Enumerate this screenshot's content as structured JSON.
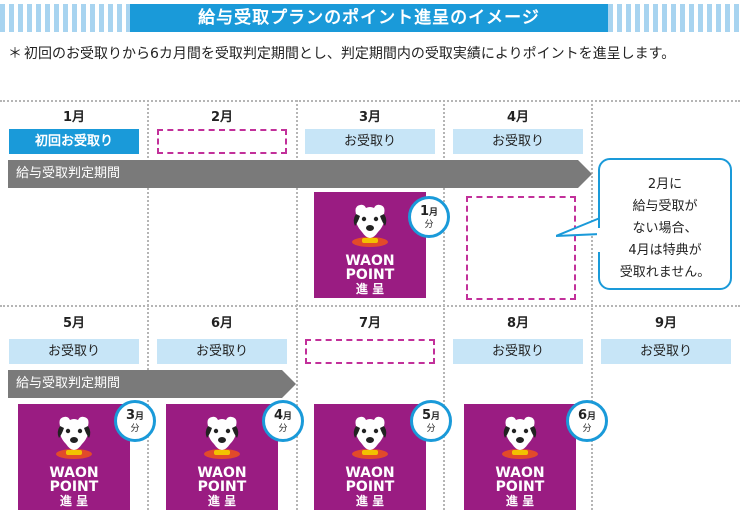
{
  "title": "給与受取プランのポイント進呈のイメージ",
  "note": {
    "mark": "＊",
    "text": "初回のお受取りから6カ月間を受取判定期間とし、判定期間内の受取実績によりポイントを進呈します。"
  },
  "months": [
    "1月",
    "2月",
    "3月",
    "4月",
    "5月",
    "6月",
    "7月",
    "8月",
    "9月"
  ],
  "row1_cells": [
    "初回お受取り",
    "",
    "お受取り",
    "お受取り"
  ],
  "row2_cells": [
    "お受取り",
    "お受取り",
    "",
    "お受取り",
    "お受取り"
  ],
  "judgement_label": "給与受取判定期間",
  "point_card": {
    "line1": "WAON",
    "line2": "POINT",
    "line3": "進 呈",
    "logo_text": "WAON"
  },
  "badges": [
    {
      "month": "1",
      "unit": "月",
      "suffix": "分"
    },
    {
      "month": "3",
      "unit": "月",
      "suffix": "分"
    },
    {
      "month": "4",
      "unit": "月",
      "suffix": "分"
    },
    {
      "month": "5",
      "unit": "月",
      "suffix": "分"
    },
    {
      "month": "6",
      "unit": "月",
      "suffix": "分"
    }
  ],
  "callout": [
    "2月に",
    "給与受取が",
    "ない場合、",
    "4月は特典が",
    "受取れません。"
  ],
  "colors": {
    "accent": "#1a9ad9",
    "light_blue": "#c7e5f7",
    "purple": "#9a1c82",
    "gray_arrow": "#7a7a7a",
    "dash": "#c2309a"
  }
}
